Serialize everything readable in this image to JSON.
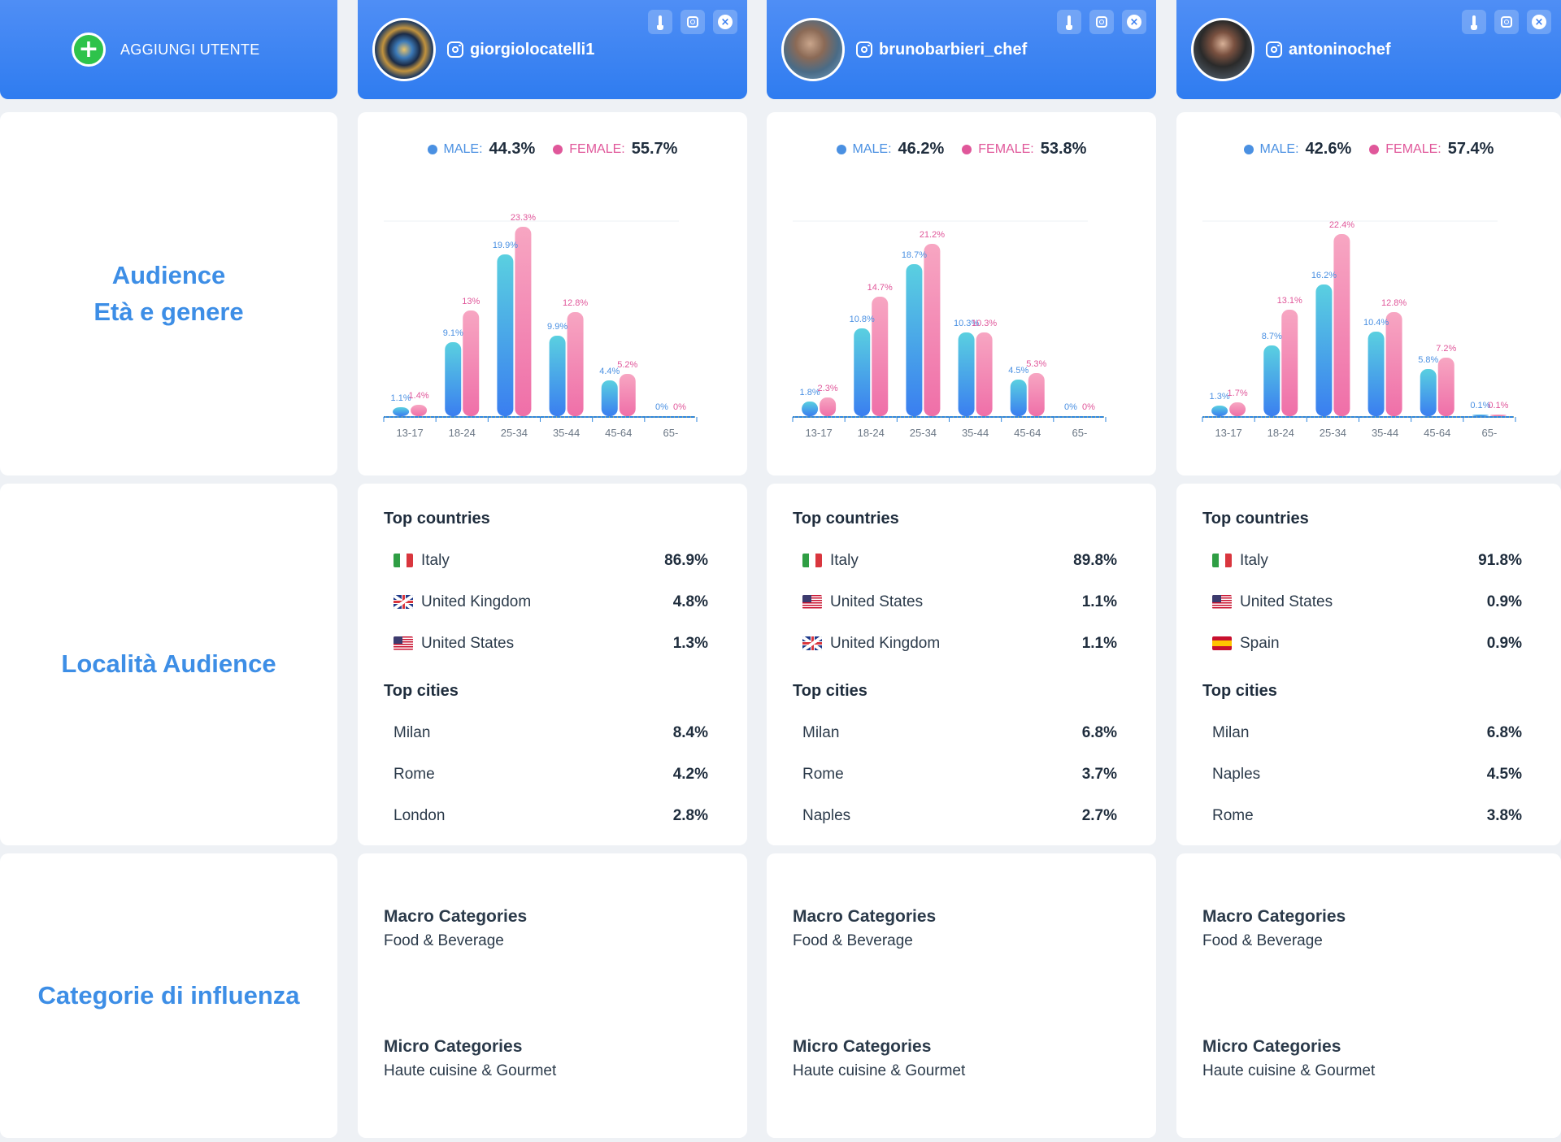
{
  "add_user_label": "AGGIUNGI UTENTE",
  "section_labels": {
    "audience_line1": "Audience",
    "audience_line2": "Età e genere",
    "location": "Località Audience",
    "categories": "Categorie di influenza"
  },
  "common": {
    "male_label": "MALE:",
    "female_label": "FEMALE:",
    "top_countries": "Top countries",
    "top_cities": "Top cities",
    "macro_title": "Macro Categories",
    "micro_title": "Micro Categories"
  },
  "users": [
    {
      "username": "giorgiolocatelli1",
      "male_pct": "44.3%",
      "female_pct": "55.7%",
      "countries": [
        {
          "name": "Italy",
          "flag": "it",
          "value": "86.9%"
        },
        {
          "name": "United Kingdom",
          "flag": "uk",
          "value": "4.8%"
        },
        {
          "name": "United States",
          "flag": "us",
          "value": "1.3%"
        }
      ],
      "cities": [
        {
          "name": "Milan",
          "value": "8.4%"
        },
        {
          "name": "Rome",
          "value": "4.2%"
        },
        {
          "name": "London",
          "value": "2.8%"
        }
      ],
      "macro": "Food & Beverage",
      "micro": "Haute cuisine & Gourmet"
    },
    {
      "username": "brunobarbieri_chef",
      "male_pct": "46.2%",
      "female_pct": "53.8%",
      "countries": [
        {
          "name": "Italy",
          "flag": "it",
          "value": "89.8%"
        },
        {
          "name": "United States",
          "flag": "us",
          "value": "1.1%"
        },
        {
          "name": "United Kingdom",
          "flag": "uk",
          "value": "1.1%"
        }
      ],
      "cities": [
        {
          "name": "Milan",
          "value": "6.8%"
        },
        {
          "name": "Rome",
          "value": "3.7%"
        },
        {
          "name": "Naples",
          "value": "2.7%"
        }
      ],
      "macro": "Food & Beverage",
      "micro": "Haute cuisine & Gourmet"
    },
    {
      "username": "antoninochef",
      "male_pct": "42.6%",
      "female_pct": "57.4%",
      "countries": [
        {
          "name": "Italy",
          "flag": "it",
          "value": "91.8%"
        },
        {
          "name": "United States",
          "flag": "us",
          "value": "0.9%"
        },
        {
          "name": "Spain",
          "flag": "es",
          "value": "0.9%"
        }
      ],
      "cities": [
        {
          "name": "Milan",
          "value": "6.8%"
        },
        {
          "name": "Naples",
          "value": "4.5%"
        },
        {
          "name": "Rome",
          "value": "3.8%"
        }
      ],
      "macro": "Food & Beverage",
      "micro": "Haute cuisine & Gourmet"
    }
  ],
  "chart_data": [
    {
      "type": "bar",
      "categories": [
        "13-17",
        "18-24",
        "25-34",
        "35-44",
        "45-64",
        "65-"
      ],
      "series": [
        {
          "name": "MALE",
          "values": [
            1.1,
            9.1,
            19.9,
            9.9,
            4.4,
            0
          ]
        },
        {
          "name": "FEMALE",
          "values": [
            1.4,
            13,
            23.3,
            12.8,
            5.2,
            0
          ]
        }
      ],
      "labels": {
        "male": [
          "1.1%",
          "9.1%",
          "19.9%",
          "9.9%",
          "4.4%",
          "0%"
        ],
        "female": [
          "1.4%",
          "13%",
          "23.3%",
          "12.8%",
          "5.2%",
          "0%"
        ]
      },
      "colors": {
        "male_top": "#5ad0e0",
        "male_bottom": "#3a7ef0",
        "female_top": "#f7a6c2",
        "female_bottom": "#ef6fa8"
      }
    },
    {
      "type": "bar",
      "categories": [
        "13-17",
        "18-24",
        "25-34",
        "35-44",
        "45-64",
        "65-"
      ],
      "series": [
        {
          "name": "MALE",
          "values": [
            1.8,
            10.8,
            18.7,
            10.3,
            4.5,
            0
          ]
        },
        {
          "name": "FEMALE",
          "values": [
            2.3,
            14.7,
            21.2,
            10.3,
            5.3,
            0
          ]
        }
      ],
      "labels": {
        "male": [
          "1.8%",
          "10.8%",
          "18.7%",
          "10.3%",
          "4.5%",
          "0%"
        ],
        "female": [
          "2.3%",
          "14.7%",
          "21.2%",
          "10.3%",
          "5.3%",
          "0%"
        ]
      },
      "colors": {
        "male_top": "#5ad0e0",
        "male_bottom": "#3a7ef0",
        "female_top": "#f7a6c2",
        "female_bottom": "#ef6fa8"
      }
    },
    {
      "type": "bar",
      "categories": [
        "13-17",
        "18-24",
        "25-34",
        "35-44",
        "45-64",
        "65-"
      ],
      "series": [
        {
          "name": "MALE",
          "values": [
            1.3,
            8.7,
            16.2,
            10.4,
            5.8,
            0.1
          ]
        },
        {
          "name": "FEMALE",
          "values": [
            1.7,
            13.1,
            22.4,
            12.8,
            7.2,
            0.1
          ]
        }
      ],
      "labels": {
        "male": [
          "1.3%",
          "8.7%",
          "16.2%",
          "10.4%",
          "5.8%",
          "0.1%"
        ],
        "female": [
          "1.7%",
          "13.1%",
          "22.4%",
          "12.8%",
          "7.2%",
          "0.1%"
        ]
      },
      "colors": {
        "male_top": "#5ad0e0",
        "male_bottom": "#3a7ef0",
        "female_top": "#f7a6c2",
        "female_bottom": "#ef6fa8"
      }
    }
  ]
}
